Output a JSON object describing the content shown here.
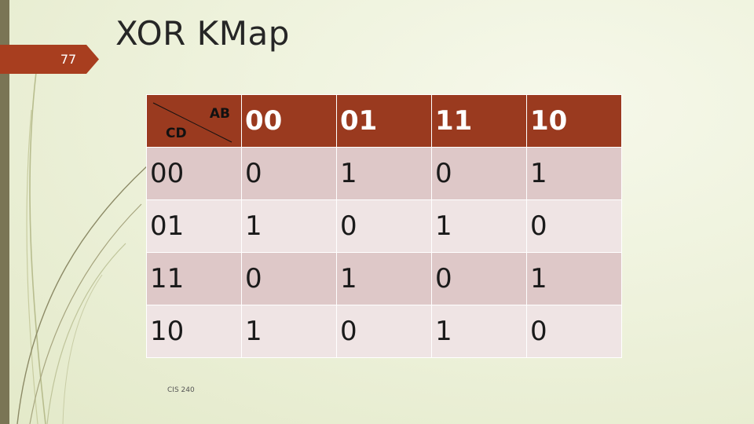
{
  "slide": {
    "number": "77",
    "title": "XOR KMap",
    "footer": "CIS 240"
  },
  "kmap": {
    "corner": {
      "top_right": "AB",
      "bottom_left": "CD"
    },
    "columns": [
      "00",
      "01",
      "11",
      "10"
    ],
    "rows": [
      {
        "label": "00",
        "cells": [
          "0",
          "1",
          "0",
          "1"
        ]
      },
      {
        "label": "01",
        "cells": [
          "1",
          "0",
          "1",
          "0"
        ]
      },
      {
        "label": "11",
        "cells": [
          "0",
          "1",
          "0",
          "1"
        ]
      },
      {
        "label": "10",
        "cells": [
          "1",
          "0",
          "1",
          "0"
        ]
      }
    ]
  },
  "colors": {
    "header_fill": "#9a3a1f",
    "row_fill_dark": "#dec8c8",
    "row_fill_light": "#efe4e4",
    "number_tab": "#a83e1f",
    "left_bar": "#7a7555"
  }
}
